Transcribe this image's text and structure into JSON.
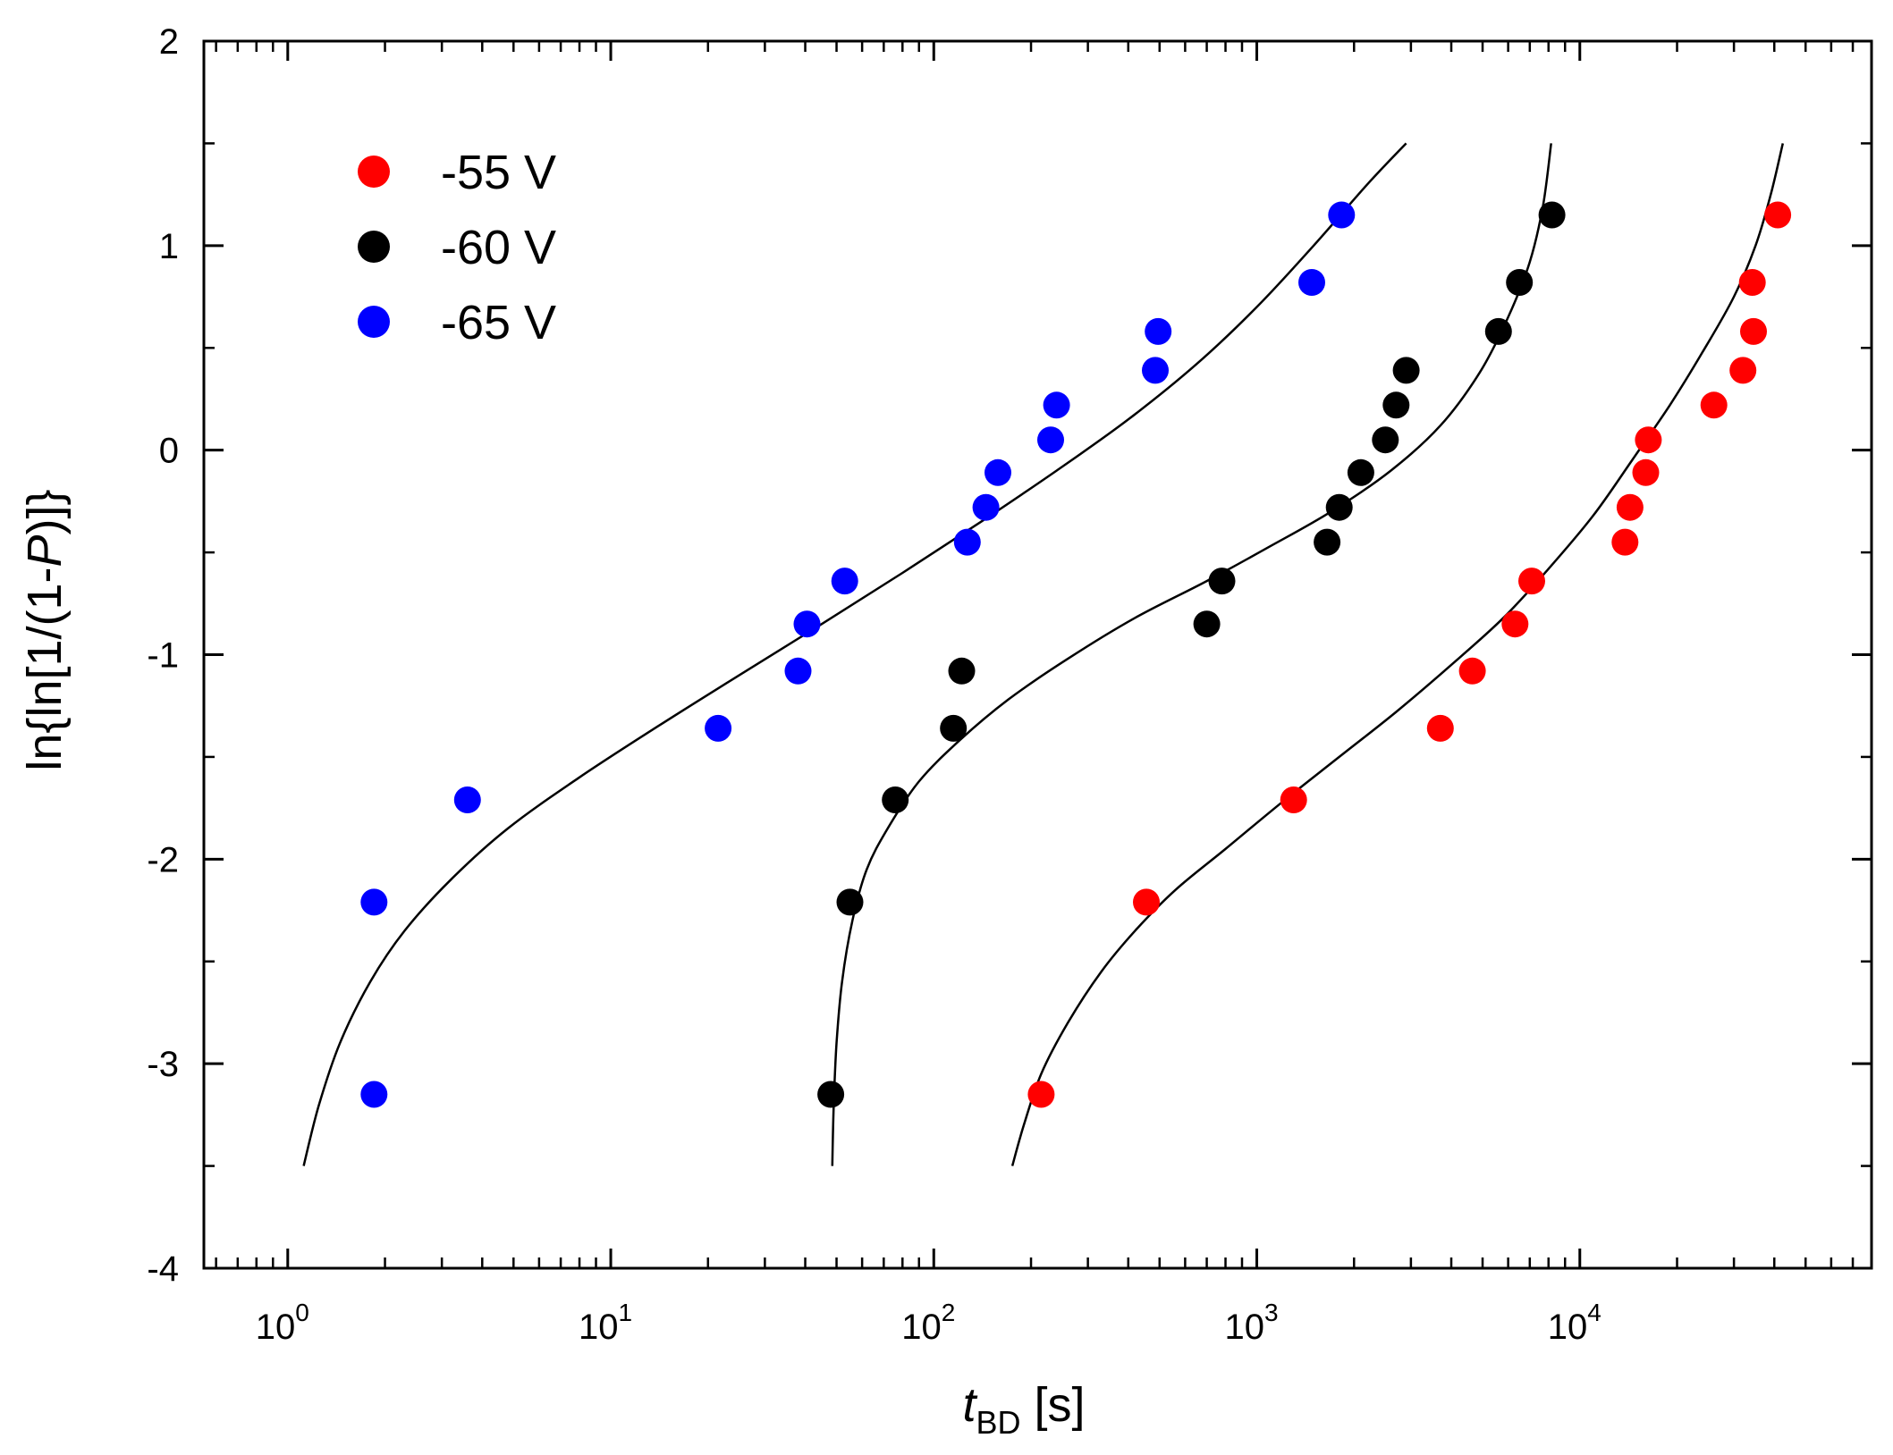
{
  "chart_data": {
    "type": "scatter",
    "title": "",
    "xlabel": {
      "main": "t",
      "sub": "BD",
      "unit": " [s]"
    },
    "ylabel": {
      "pre": "ln{ln[1/(1-",
      "italic": "P",
      "post": ")]}"
    },
    "x_scale": "log",
    "xlim": [
      0.55,
      80000
    ],
    "ylim": [
      -4,
      2
    ],
    "x_ticks": [
      {
        "value": 1,
        "base": "10",
        "exp": "0"
      },
      {
        "value": 10,
        "base": "10",
        "exp": "1"
      },
      {
        "value": 100,
        "base": "10",
        "exp": "2"
      },
      {
        "value": 1000,
        "base": "10",
        "exp": "3"
      },
      {
        "value": 10000,
        "base": "10",
        "exp": "4"
      }
    ],
    "y_ticks": [
      {
        "value": 2,
        "label": "2"
      },
      {
        "value": 1,
        "label": "1"
      },
      {
        "value": 0,
        "label": "0"
      },
      {
        "value": -1,
        "label": "-1"
      },
      {
        "value": -2,
        "label": "-2"
      },
      {
        "value": -3,
        "label": "-3"
      },
      {
        "value": -4,
        "label": "-4"
      }
    ],
    "legend_position": "top-left",
    "grid": false,
    "series": [
      {
        "name": "-55 V",
        "color": "#ff0000",
        "points": [
          [
            215,
            -3.15
          ],
          [
            455,
            -2.21
          ],
          [
            1300,
            -1.71
          ],
          [
            3700,
            -1.36
          ],
          [
            4650,
            -1.08
          ],
          [
            6300,
            -0.85
          ],
          [
            7100,
            -0.64
          ],
          [
            13800,
            -0.45
          ],
          [
            14300,
            -0.28
          ],
          [
            16000,
            -0.11
          ],
          [
            16300,
            0.05
          ],
          [
            26000,
            0.22
          ],
          [
            32000,
            0.39
          ],
          [
            34500,
            0.58
          ],
          [
            34200,
            0.82
          ],
          [
            41000,
            1.15
          ]
        ],
        "fit_curve": [
          [
            175,
            -3.5
          ],
          [
            190,
            -3.3
          ],
          [
            215,
            -3.05
          ],
          [
            260,
            -2.8
          ],
          [
            330,
            -2.55
          ],
          [
            420,
            -2.35
          ],
          [
            560,
            -2.15
          ],
          [
            800,
            -1.95
          ],
          [
            1200,
            -1.72
          ],
          [
            1800,
            -1.5
          ],
          [
            2700,
            -1.28
          ],
          [
            4000,
            -1.05
          ],
          [
            5800,
            -0.82
          ],
          [
            8000,
            -0.58
          ],
          [
            11000,
            -0.32
          ],
          [
            14500,
            -0.05
          ],
          [
            19000,
            0.22
          ],
          [
            24000,
            0.48
          ],
          [
            30000,
            0.75
          ],
          [
            35000,
            1.0
          ],
          [
            39000,
            1.25
          ],
          [
            42500,
            1.5
          ]
        ]
      },
      {
        "name": "-60 V",
        "color": "#000000",
        "points": [
          [
            48,
            -3.15
          ],
          [
            55,
            -2.21
          ],
          [
            76,
            -1.71
          ],
          [
            115,
            -1.36
          ],
          [
            122,
            -1.08
          ],
          [
            700,
            -0.85
          ],
          [
            780,
            -0.64
          ],
          [
            1650,
            -0.45
          ],
          [
            1800,
            -0.28
          ],
          [
            2100,
            -0.11
          ],
          [
            2500,
            0.05
          ],
          [
            2700,
            0.22
          ],
          [
            2900,
            0.39
          ],
          [
            5600,
            0.58
          ],
          [
            6500,
            0.82
          ],
          [
            8200,
            1.15
          ]
        ],
        "fit_curve": [
          [
            48.5,
            -3.5
          ],
          [
            49,
            -3.2
          ],
          [
            50,
            -2.9
          ],
          [
            52,
            -2.6
          ],
          [
            56,
            -2.3
          ],
          [
            62,
            -2.05
          ],
          [
            72,
            -1.85
          ],
          [
            90,
            -1.62
          ],
          [
            120,
            -1.42
          ],
          [
            170,
            -1.22
          ],
          [
            260,
            -1.02
          ],
          [
            420,
            -0.82
          ],
          [
            700,
            -0.64
          ],
          [
            1100,
            -0.47
          ],
          [
            1700,
            -0.3
          ],
          [
            2600,
            -0.1
          ],
          [
            3700,
            0.12
          ],
          [
            4900,
            0.38
          ],
          [
            6000,
            0.65
          ],
          [
            7000,
            0.92
          ],
          [
            7700,
            1.2
          ],
          [
            8150,
            1.5
          ]
        ]
      },
      {
        "name": "-65 V",
        "color": "#0000ff",
        "points": [
          [
            1.85,
            -3.15
          ],
          [
            1.85,
            -2.21
          ],
          [
            3.6,
            -1.71
          ],
          [
            21.5,
            -1.36
          ],
          [
            38,
            -1.08
          ],
          [
            40.5,
            -0.85
          ],
          [
            53,
            -0.64
          ],
          [
            127,
            -0.45
          ],
          [
            145,
            -0.28
          ],
          [
            158,
            -0.11
          ],
          [
            230,
            0.05
          ],
          [
            240,
            0.22
          ],
          [
            485,
            0.39
          ],
          [
            495,
            0.58
          ],
          [
            1480,
            0.82
          ],
          [
            1830,
            1.15
          ]
        ],
        "fit_curve": [
          [
            1.12,
            -3.5
          ],
          [
            1.25,
            -3.2
          ],
          [
            1.45,
            -2.9
          ],
          [
            1.8,
            -2.6
          ],
          [
            2.3,
            -2.35
          ],
          [
            3.2,
            -2.1
          ],
          [
            4.8,
            -1.85
          ],
          [
            8,
            -1.6
          ],
          [
            14,
            -1.35
          ],
          [
            25,
            -1.1
          ],
          [
            45,
            -0.85
          ],
          [
            80,
            -0.6
          ],
          [
            140,
            -0.35
          ],
          [
            240,
            -0.1
          ],
          [
            400,
            0.15
          ],
          [
            650,
            0.42
          ],
          [
            1000,
            0.7
          ],
          [
            1500,
            1.0
          ],
          [
            2200,
            1.3
          ],
          [
            2900,
            1.5
          ]
        ]
      }
    ]
  }
}
